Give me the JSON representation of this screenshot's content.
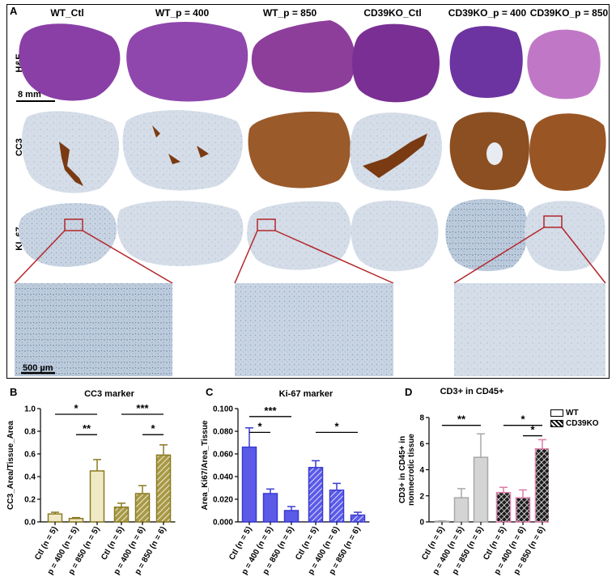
{
  "figure": {
    "panel_labels": {
      "a": "A",
      "b": "B",
      "c": "C",
      "d": "D"
    },
    "columns": [
      "WT_Ctl",
      "WT_p = 400",
      "WT_p = 850",
      "CD39KO_Ctl",
      "CD39KO_p = 400",
      "CD39KO_p = 850"
    ],
    "rows": [
      "H&E",
      "CC3",
      "KI_67"
    ],
    "scale_bar_large": "8 mm",
    "scale_bar_small": "500 µm",
    "colors": {
      "he": "#8a3fa6",
      "ihc_bg": "#c6d3e3",
      "cc3_stain": "#8b4a1c",
      "zoom_box": "#b3262a"
    }
  },
  "legend": {
    "wt": "WT",
    "ko": "CD39KO"
  },
  "chart_data": [
    {
      "type": "bar",
      "title": "CC3 marker",
      "ylabel": "CC3_Area/Tissue_Area",
      "ylim": [
        0,
        1.0
      ],
      "yticks": [
        "0.0",
        "0.2",
        "0.4",
        "0.6",
        "0.8",
        "1.0"
      ],
      "categories": [
        "Ctl (n = 5)",
        "p = 400 (n = 5)",
        "p = 850 (n = 5)",
        "Ctl (n = 5)",
        "p = 400 (n = 6)",
        "p = 850 (n = 6)"
      ],
      "values": [
        0.07,
        0.03,
        0.45,
        0.13,
        0.25,
        0.59
      ],
      "errors": [
        0.015,
        0.008,
        0.1,
        0.035,
        0.07,
        0.09
      ],
      "groups": [
        "WT",
        "WT",
        "WT",
        "CD39KO",
        "CD39KO",
        "CD39KO"
      ],
      "colors": {
        "wt_fill": "#efe9c6",
        "ko_fill": "#a89a45",
        "edge": "#8a7a22"
      },
      "significance": [
        {
          "from": 0,
          "to": 2,
          "label": "*",
          "y": 0.95
        },
        {
          "from": 1,
          "to": 2,
          "label": "**",
          "y": 0.77
        },
        {
          "from": 3,
          "to": 5,
          "label": "***",
          "y": 0.95
        },
        {
          "from": 4,
          "to": 5,
          "label": "*",
          "y": 0.77
        }
      ]
    },
    {
      "type": "bar",
      "title": "Ki-67 marker",
      "ylabel": "Area_Ki67/Area_Tissue",
      "ylim": [
        0,
        0.1
      ],
      "yticks": [
        "0.000",
        "0.020",
        "0.040",
        "0.060",
        "0.080",
        "0.100"
      ],
      "categories": [
        "Ctl (n = 5)",
        "p = 400 (n = 5)",
        "p = 850 (n = 5)",
        "Ctl (n = 5)",
        "p = 400 (n = 6)",
        "p = 850 (n = 6)"
      ],
      "values": [
        0.066,
        0.025,
        0.01,
        0.048,
        0.028,
        0.006
      ],
      "errors": [
        0.017,
        0.004,
        0.0035,
        0.006,
        0.006,
        0.0025
      ],
      "groups": [
        "WT",
        "WT",
        "WT",
        "CD39KO",
        "CD39KO",
        "CD39KO"
      ],
      "colors": {
        "wt_fill": "#5b5be8",
        "ko_fill": "#5b5be8",
        "edge": "#3a3ad0"
      },
      "significance": [
        {
          "from": 0,
          "to": 2,
          "label": "***",
          "y": 0.093
        },
        {
          "from": 0,
          "to": 1,
          "label": "*",
          "y": 0.079
        },
        {
          "from": 3,
          "to": 5,
          "label": "*",
          "y": 0.079
        }
      ]
    },
    {
      "type": "bar",
      "title": "CD3+ in CD45+",
      "ylabel": "CD3+ in CD45+ in nonnecrotic tissue",
      "ylim": [
        0,
        8
      ],
      "yticks": [
        "0",
        "2",
        "4",
        "6",
        "8"
      ],
      "categories": [
        "Ctl (n = 5)",
        "p = 400 (n = 5)",
        "p = 850 (n = 5)",
        "Ctl (n = 5)",
        "p = 400 (n = 6)",
        "p = 850 (n = 6)"
      ],
      "values": [
        0.05,
        1.85,
        4.95,
        2.25,
        1.85,
        5.6
      ],
      "errors": [
        0.03,
        0.7,
        1.8,
        0.4,
        0.6,
        0.7
      ],
      "groups": [
        "WT",
        "WT",
        "WT",
        "CD39KO",
        "CD39KO",
        "CD39KO"
      ],
      "colors": {
        "wt_fill": "#d4d4d4",
        "ko_fill": "#1c1c1c",
        "edge": "#e07aa8",
        "wt_edge": "#a8a8a8"
      },
      "significance": [
        {
          "from": 0,
          "to": 2,
          "label": "**",
          "y": 7.4
        },
        {
          "from": 3,
          "to": 5,
          "label": "*",
          "y": 7.4
        },
        {
          "from": 4,
          "to": 5,
          "label": "*",
          "y": 6.6
        }
      ]
    }
  ]
}
